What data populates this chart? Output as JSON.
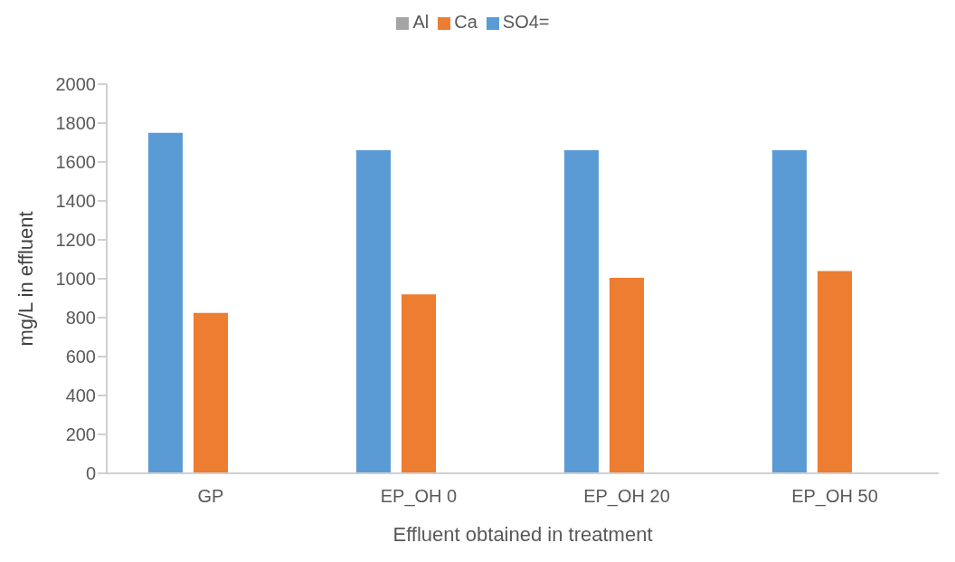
{
  "chart_data": {
    "type": "bar",
    "xlabel": "Effluent obtained in treatment",
    "ylabel": "mg/L in effluent",
    "categories": [
      "GP",
      "EP_OH 0",
      "EP_OH 20",
      "EP_OH 50"
    ],
    "series": [
      {
        "name": "SO4=",
        "color": "#5b9bd5",
        "values": [
          1750,
          1660,
          1660,
          1660
        ]
      },
      {
        "name": "Ca",
        "color": "#ed7d31",
        "values": [
          825,
          920,
          1005,
          1040
        ]
      },
      {
        "name": "Al",
        "color": "#a5a5a5",
        "values": [
          0,
          0,
          0,
          0
        ]
      }
    ],
    "ylim": [
      0,
      2000
    ],
    "yticks": [
      0,
      200,
      400,
      600,
      800,
      1000,
      1200,
      1400,
      1600,
      1800,
      2000
    ],
    "grid": false,
    "legend": "top"
  }
}
